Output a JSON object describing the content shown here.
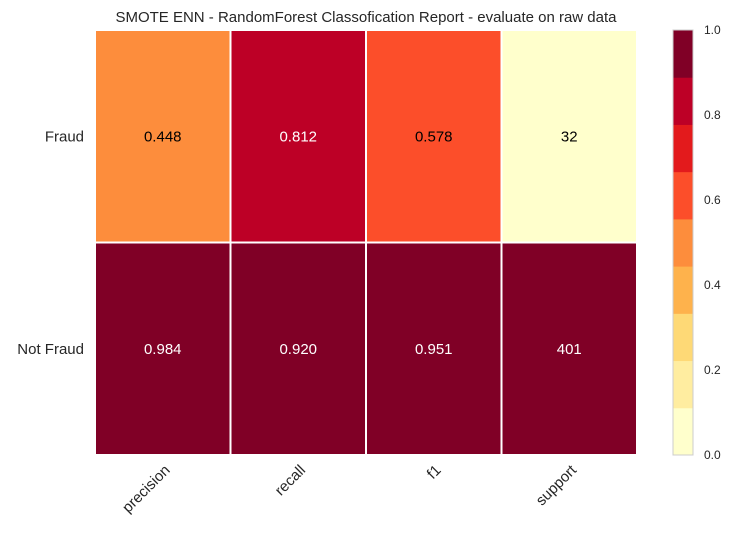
{
  "chart_data": {
    "type": "heatmap",
    "title": "SMOTE ENN - RandomForest Classofication Report - evaluate on raw data",
    "columns": [
      "precision",
      "recall",
      "f1",
      "support"
    ],
    "rows": [
      {
        "label": "Fraud",
        "values": [
          0.448,
          0.812,
          0.578,
          32
        ],
        "display": [
          "0.448",
          "0.812",
          "0.578",
          "32"
        ],
        "color_level": [
          0.448,
          0.812,
          0.578,
          0.0
        ]
      },
      {
        "label": "Not Fraud",
        "values": [
          0.984,
          0.92,
          0.951,
          401
        ],
        "display": [
          "0.984",
          "0.920",
          "0.951",
          "401"
        ],
        "color_level": [
          0.984,
          0.92,
          0.951,
          1.0
        ]
      }
    ],
    "colorbar": {
      "min": 0.0,
      "max": 1.0,
      "ticks": [
        "0.0",
        "0.2",
        "0.4",
        "0.6",
        "0.8",
        "1.0"
      ],
      "colors": [
        "#ffffcc",
        "#ffeda0",
        "#fed976",
        "#feb24c",
        "#fd8d3c",
        "#fc4e2a",
        "#e31a1c",
        "#bd0026",
        "#800026"
      ]
    },
    "grid": false
  }
}
